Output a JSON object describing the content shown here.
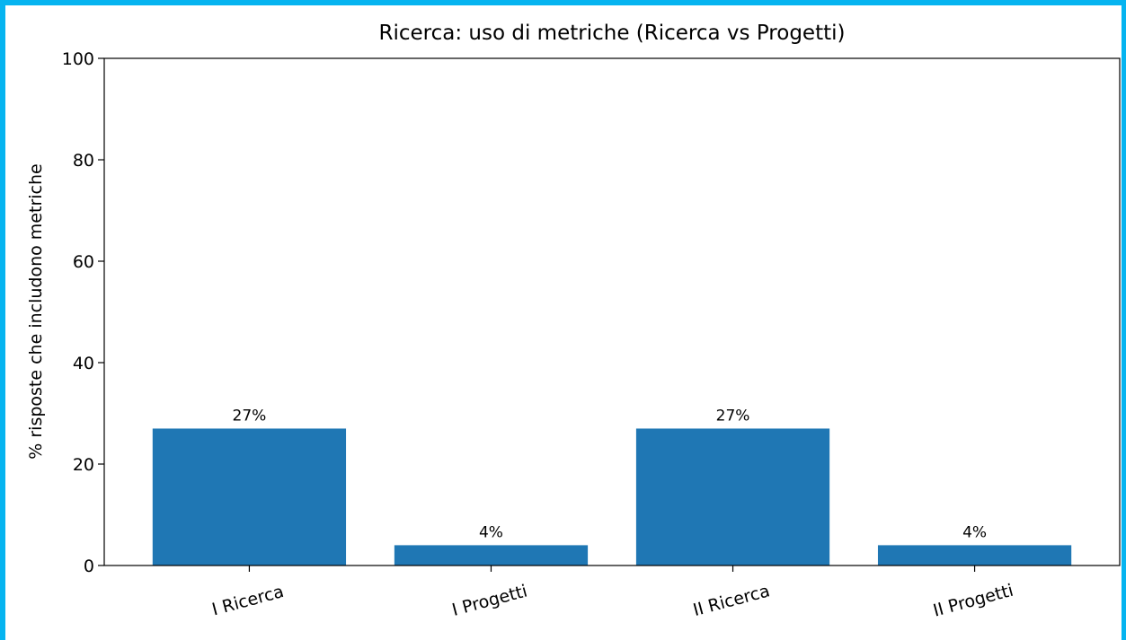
{
  "chart_data": {
    "type": "bar",
    "title": "Ricerca: uso di metriche (Ricerca vs Progetti)",
    "y_label": "% risposte che includono metriche",
    "categories": [
      "I Ricerca",
      "I Progetti",
      "II Ricerca",
      "II Progetti"
    ],
    "values": [
      27,
      4,
      27,
      4
    ],
    "value_labels": [
      "27%",
      "4%",
      "27%",
      "4%"
    ],
    "color": "#1f77b4",
    "ylim": [
      0,
      100
    ],
    "yticks": [
      0,
      20,
      40,
      60,
      80,
      100
    ],
    "grid": false
  }
}
